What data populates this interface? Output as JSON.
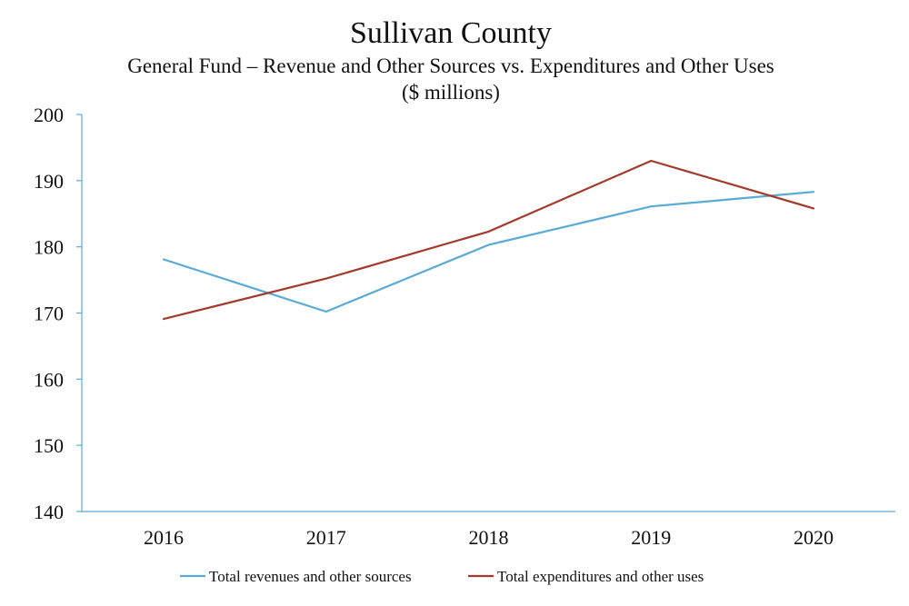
{
  "chart_data": {
    "type": "line",
    "title": "Sullivan County",
    "subtitle": "General Fund – Revenue and Other Sources vs. Expenditures and Other Uses",
    "units": "($ millions)",
    "xlabel": "",
    "ylabel": "",
    "categories": [
      "2016",
      "2017",
      "2018",
      "2019",
      "2020"
    ],
    "ylim": [
      140,
      200
    ],
    "yticks": [
      140,
      150,
      160,
      170,
      180,
      190,
      200
    ],
    "grid": false,
    "legend_position": "bottom",
    "series": [
      {
        "name": "Total revenues and other sources",
        "color": "#5aaad6",
        "values": [
          178.1,
          170.2,
          180.3,
          186.1,
          188.3
        ]
      },
      {
        "name": "Total expenditures and other uses",
        "color": "#a33a2a",
        "values": [
          169.1,
          175.2,
          182.3,
          193.0,
          185.8
        ]
      }
    ],
    "axis_color": "#5aaad6"
  }
}
